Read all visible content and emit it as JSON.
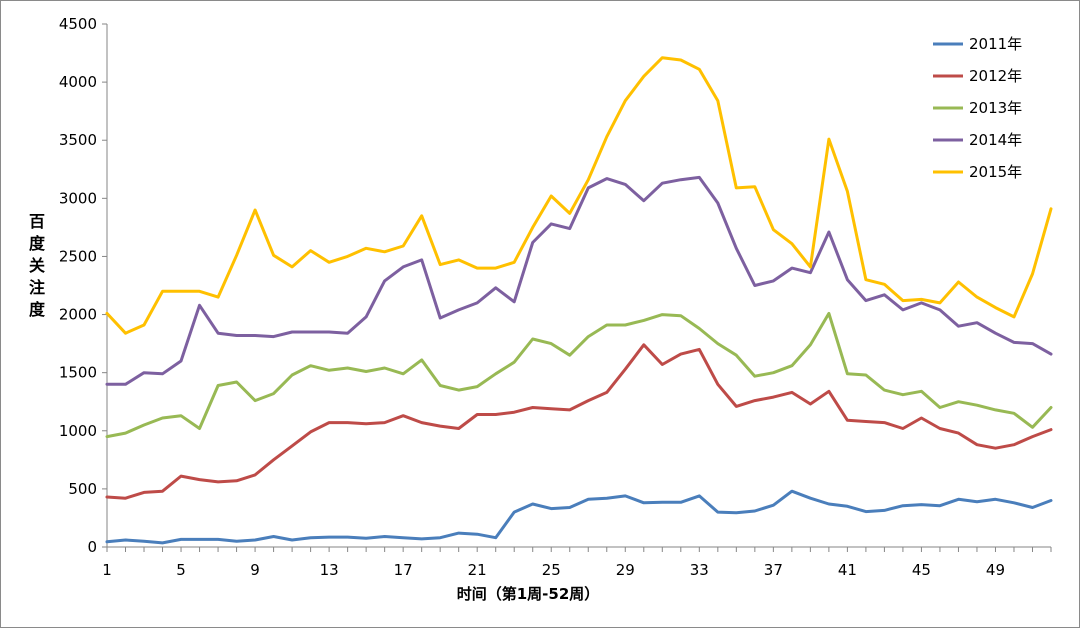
{
  "chart_data": {
    "type": "line",
    "title": "",
    "xlabel": "时间（第1周-52周）",
    "ylabel": "百度关注度",
    "ylim": [
      0,
      4500
    ],
    "yticks": [
      0,
      500,
      1000,
      1500,
      2000,
      2500,
      3000,
      3500,
      4000,
      4500
    ],
    "xlim": [
      1,
      52
    ],
    "xticks": [
      1,
      5,
      9,
      13,
      17,
      21,
      25,
      29,
      33,
      37,
      41,
      45,
      49
    ],
    "grid": "none",
    "legend": "right",
    "x": [
      1,
      2,
      3,
      4,
      5,
      6,
      7,
      8,
      9,
      10,
      11,
      12,
      13,
      14,
      15,
      16,
      17,
      18,
      19,
      20,
      21,
      22,
      23,
      24,
      25,
      26,
      27,
      28,
      29,
      30,
      31,
      32,
      33,
      34,
      35,
      36,
      37,
      38,
      39,
      40,
      41,
      42,
      43,
      44,
      45,
      46,
      47,
      48,
      49,
      50,
      51,
      52
    ],
    "series": [
      {
        "name": "2011年",
        "color": "#4a7ebb",
        "values": [
          45,
          60,
          50,
          35,
          65,
          65,
          65,
          50,
          60,
          90,
          60,
          80,
          85,
          85,
          75,
          90,
          80,
          70,
          80,
          120,
          110,
          80,
          300,
          370,
          330,
          340,
          410,
          420,
          440,
          380,
          385,
          385,
          440,
          300,
          295,
          310,
          360,
          480,
          420,
          370,
          350,
          305,
          315,
          355,
          365,
          355,
          410,
          390,
          410,
          380,
          340,
          400
        ]
      },
      {
        "name": "2012年",
        "color": "#be4b48",
        "values": [
          430,
          420,
          470,
          480,
          610,
          580,
          560,
          570,
          620,
          750,
          870,
          990,
          1070,
          1070,
          1060,
          1070,
          1130,
          1070,
          1040,
          1020,
          1140,
          1140,
          1160,
          1200,
          1190,
          1180,
          1260,
          1330,
          1530,
          1740,
          1570,
          1660,
          1700,
          1400,
          1210,
          1260,
          1290,
          1330,
          1230,
          1340,
          1090,
          1080,
          1070,
          1020,
          1110,
          1020,
          980,
          880,
          850,
          880,
          950,
          1010
        ]
      },
      {
        "name": "2013年",
        "color": "#98b954",
        "values": [
          950,
          980,
          1050,
          1110,
          1130,
          1020,
          1390,
          1420,
          1260,
          1320,
          1480,
          1560,
          1520,
          1540,
          1510,
          1540,
          1490,
          1610,
          1390,
          1350,
          1380,
          1490,
          1590,
          1790,
          1750,
          1650,
          1810,
          1910,
          1910,
          1950,
          2000,
          1990,
          1880,
          1750,
          1650,
          1470,
          1500,
          1560,
          1740,
          2010,
          1490,
          1480,
          1350,
          1310,
          1340,
          1200,
          1250,
          1220,
          1180,
          1150,
          1030,
          1200
        ]
      },
      {
        "name": "2014年",
        "color": "#7d60a0",
        "values": [
          1400,
          1400,
          1500,
          1490,
          1600,
          2080,
          1840,
          1820,
          1820,
          1810,
          1850,
          1850,
          1850,
          1840,
          1980,
          2290,
          2410,
          2470,
          1970,
          2040,
          2100,
          2230,
          2110,
          2620,
          2780,
          2740,
          3090,
          3170,
          3120,
          2980,
          3130,
          3160,
          3180,
          2960,
          2570,
          2250,
          2290,
          2400,
          2360,
          2710,
          2300,
          2120,
          2170,
          2040,
          2100,
          2040,
          1900,
          1930,
          1840,
          1760,
          1750,
          1660
        ]
      },
      {
        "name": "2015年",
        "color": "#ffc000",
        "values": [
          2010,
          1840,
          1910,
          2200,
          2200,
          2200,
          2150,
          2510,
          2900,
          2510,
          2410,
          2550,
          2450,
          2500,
          2570,
          2540,
          2590,
          2850,
          2430,
          2470,
          2400,
          2400,
          2450,
          2750,
          3020,
          2870,
          3160,
          3530,
          3840,
          4050,
          4210,
          4190,
          4110,
          3840,
          3090,
          3100,
          2730,
          2610,
          2410,
          3510,
          3060,
          2300,
          2260,
          2120,
          2130,
          2100,
          2280,
          2150,
          2060,
          1980,
          2350,
          2910
        ]
      }
    ]
  }
}
